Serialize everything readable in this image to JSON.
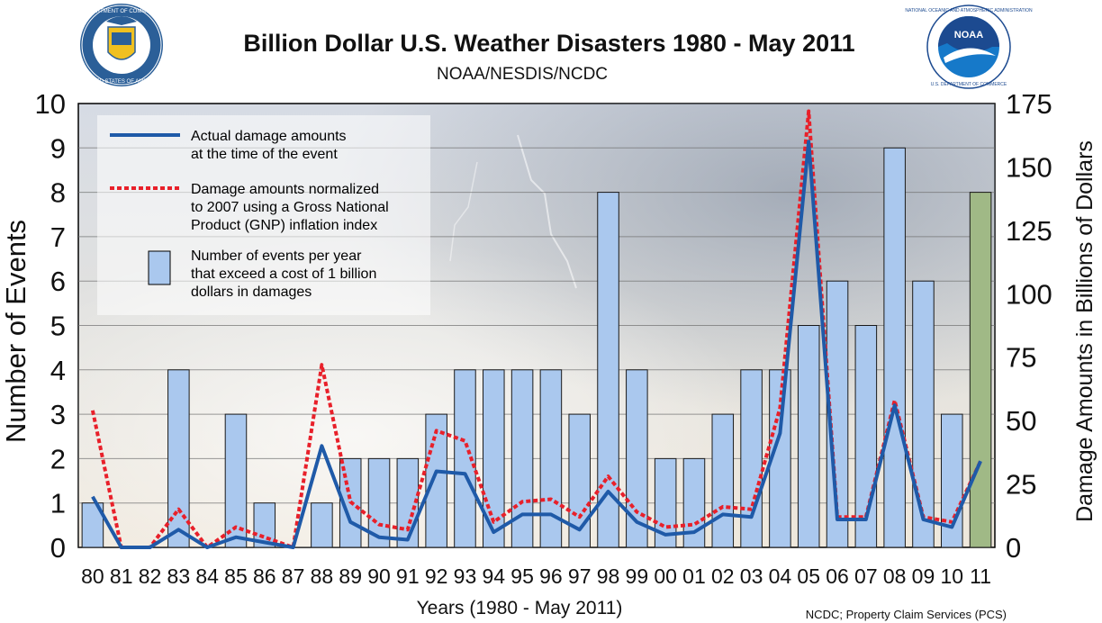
{
  "header": {
    "title": "Billion Dollar U.S. Weather Disasters 1980 - May 2011",
    "subtitle": "NOAA/NESDIS/NCDC",
    "source": "NCDC; Property Claim Services (PCS)"
  },
  "logos": {
    "left": {
      "name": "Department of Commerce seal",
      "ring_text": "DEPARTMENT OF COMMERCE • UNITED STATES OF AMERICA"
    },
    "right": {
      "name": "NOAA logo",
      "center_text": "NOAA",
      "ring_text": "NATIONAL OCEANIC AND ATMOSPHERIC ADMINISTRATION • U.S. DEPARTMENT OF COMMERCE"
    }
  },
  "legend": {
    "actual_line": "Actual damage amounts\nat the time of the event",
    "normalized_line": "Damage amounts normalized\nto 2007 using a Gross National\nProduct (GNP) inflation index",
    "events_bar": "Number of events per year\nthat exceed a cost of 1 billion\ndollars in damages"
  },
  "colors": {
    "bar_fill": "#aac8ee",
    "bar_highlight_fill": "#a0b986",
    "actual_line": "#1f5aa8",
    "normalized_line": "#e8202a"
  },
  "chart_data": {
    "type": "bar",
    "categories": [
      "80",
      "81",
      "82",
      "83",
      "84",
      "85",
      "86",
      "87",
      "88",
      "89",
      "90",
      "91",
      "92",
      "93",
      "94",
      "95",
      "96",
      "97",
      "98",
      "99",
      "00",
      "01",
      "02",
      "03",
      "04",
      "05",
      "06",
      "07",
      "08",
      "09",
      "10",
      "11"
    ],
    "xlabel": "Years (1980 - May 2011)",
    "ylabel": "Number of Events",
    "y2label": "Damage Amounts in Billions of Dollars",
    "ylim": [
      0,
      10
    ],
    "y2lim": [
      0,
      175
    ],
    "yticks": [
      "0",
      "1",
      "2",
      "3",
      "4",
      "5",
      "6",
      "7",
      "8",
      "9",
      "10"
    ],
    "y2ticks": [
      "0",
      "25",
      "50",
      "75",
      "100",
      "125",
      "150",
      "175"
    ],
    "grid": true,
    "series": [
      {
        "name": "Number of events per year that exceed a cost of 1 billion dollars in damages",
        "type": "bar",
        "axis": "left",
        "values": [
          1,
          0,
          0,
          4,
          0,
          3,
          1,
          0,
          1,
          2,
          2,
          2,
          3,
          4,
          4,
          4,
          4,
          3,
          8,
          4,
          2,
          2,
          3,
          4,
          4,
          5,
          6,
          5,
          9,
          6,
          3,
          8
        ]
      },
      {
        "name": "Actual damage amounts at the time of the event",
        "type": "line",
        "axis": "right",
        "values": [
          20,
          0,
          0,
          7,
          0,
          4,
          2,
          0,
          40,
          10,
          4,
          3,
          30,
          29,
          6,
          13,
          13,
          7,
          22,
          10,
          5,
          6,
          13,
          12,
          45,
          160,
          11,
          11,
          56,
          11,
          8,
          34
        ]
      },
      {
        "name": "Damage amounts normalized to 2007 using a Gross National Product (GNP) inflation index",
        "type": "line",
        "axis": "right",
        "values": [
          54,
          0,
          0,
          15,
          0,
          8,
          4,
          0,
          72,
          18,
          9,
          7,
          46,
          42,
          10,
          18,
          19,
          12,
          28,
          14,
          8,
          9,
          16,
          15,
          55,
          172,
          12,
          12,
          58,
          12,
          10,
          34
        ]
      }
    ]
  }
}
